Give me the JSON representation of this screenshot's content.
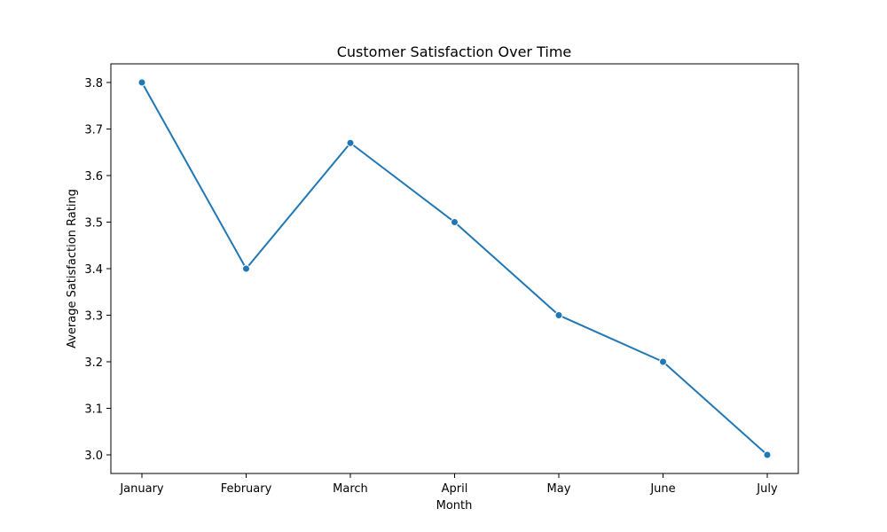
{
  "chart_data": {
    "type": "line",
    "title": "Customer Satisfaction Over Time",
    "xlabel": "Month",
    "ylabel": "Average Satisfaction Rating",
    "categories": [
      "January",
      "February",
      "March",
      "April",
      "May",
      "June",
      "July"
    ],
    "series": [
      {
        "values": [
          3.8,
          3.4,
          3.67,
          3.5,
          3.3,
          3.2,
          3.0
        ],
        "color": "#1f77b4",
        "marker": "circle"
      }
    ],
    "yticks": [
      3.0,
      3.1,
      3.2,
      3.3,
      3.4,
      3.5,
      3.6,
      3.7,
      3.8
    ],
    "ylim": [
      2.96,
      3.84
    ],
    "grid": false,
    "legend": "none"
  }
}
